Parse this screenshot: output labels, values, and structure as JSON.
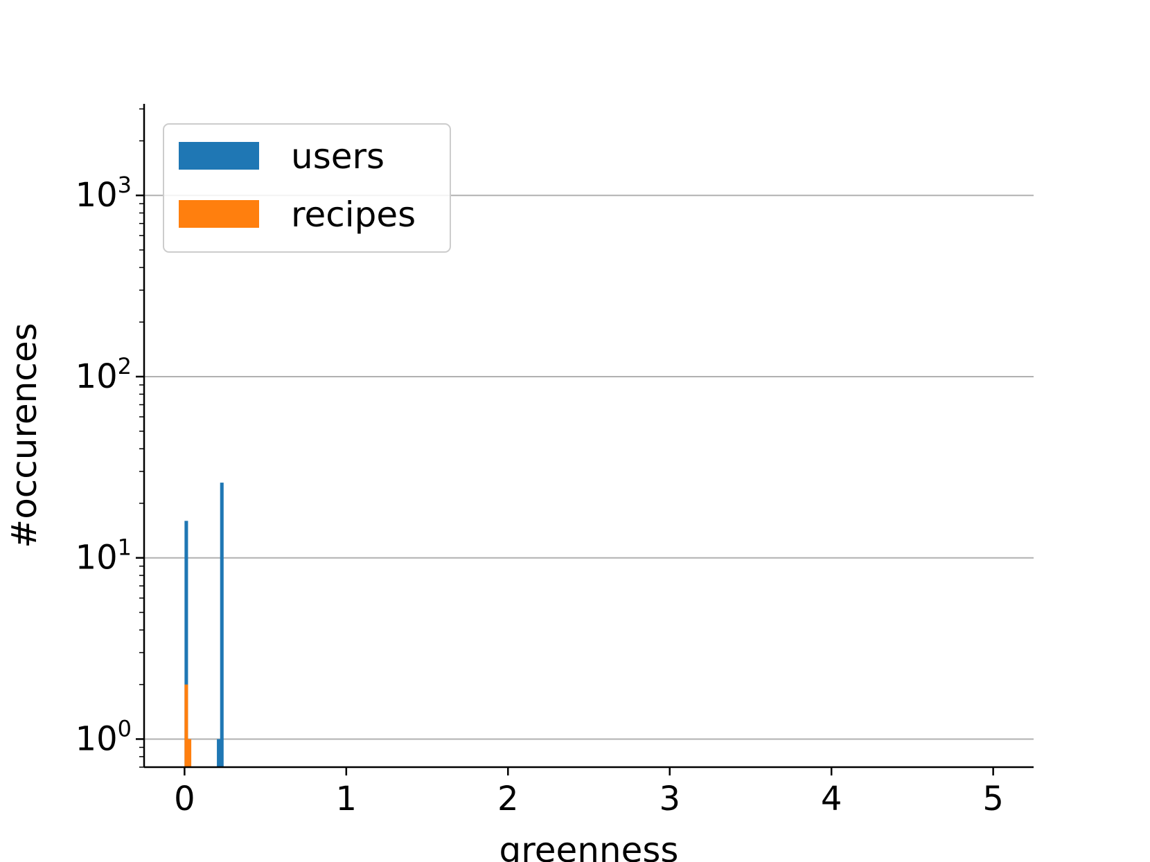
{
  "chart_data": {
    "type": "bar",
    "title": "",
    "xlabel": "greenness",
    "ylabel": "#occurences",
    "xlim": [
      -0.25,
      5.25
    ],
    "ylim": [
      0.7,
      3200
    ],
    "yscale": "log",
    "grid": "y-major",
    "legend_position": "top-left",
    "x_ticks": [
      "0",
      "1",
      "2",
      "3",
      "4",
      "5"
    ],
    "y_ticks": [
      {
        "base": "10",
        "exp": "0"
      },
      {
        "base": "10",
        "exp": "1"
      },
      {
        "base": "10",
        "exp": "2"
      },
      {
        "base": "10",
        "exp": "3"
      }
    ],
    "bin_width": 0.02,
    "bin_start": 0,
    "series": [
      {
        "name": "users",
        "color": "#1f77b4",
        "values": [
          16,
          0,
          0,
          0,
          0,
          0,
          0,
          0,
          0,
          0,
          1,
          26,
          0,
          0,
          0,
          0,
          0,
          0,
          0,
          0,
          0,
          0,
          0,
          0,
          0,
          0,
          0,
          0,
          0,
          0,
          0,
          0,
          0,
          0,
          0,
          0,
          0,
          0,
          0,
          0,
          0,
          0,
          0,
          0,
          0,
          0,
          0,
          0,
          0,
          0,
          0,
          0,
          0,
          0,
          0,
          0,
          0,
          0,
          0,
          0,
          0,
          0,
          0,
          0,
          0,
          0,
          0,
          0,
          0,
          0,
          0,
          0,
          0,
          0,
          0,
          0,
          0,
          0,
          0,
          0,
          0,
          0,
          0,
          0,
          0,
          0,
          0,
          0,
          0,
          0,
          0,
          0,
          0,
          0,
          0,
          0,
          0,
          0,
          0,
          0,
          0,
          0,
          0,
          0,
          0,
          0,
          0,
          0,
          0,
          0,
          0,
          0,
          0,
          0,
          0,
          0,
          0,
          0,
          0,
          0,
          0,
          0,
          0,
          0,
          0,
          0,
          0,
          0,
          0,
          0,
          0,
          0,
          0,
          0,
          0,
          0,
          0,
          0,
          0,
          0,
          0,
          0,
          0,
          0,
          0,
          0,
          0,
          0,
          0,
          0,
          0,
          0,
          0,
          0,
          0,
          0,
          0,
          0,
          0,
          0,
          0,
          0,
          0,
          0,
          0,
          0,
          0,
          0,
          0,
          0,
          0,
          0,
          0,
          0,
          0,
          0,
          0,
          0,
          0,
          0,
          0,
          0,
          0,
          0,
          0,
          0,
          0,
          0,
          0,
          0,
          0,
          0,
          0,
          0,
          0,
          0,
          0,
          0,
          0,
          0,
          0,
          0,
          0,
          0,
          0,
          0,
          0,
          0,
          0,
          0,
          0,
          0,
          0,
          0,
          0,
          0,
          0,
          0,
          0,
          0,
          0,
          0,
          0,
          0,
          0,
          0,
          0,
          0,
          0,
          0,
          0,
          0,
          0,
          0,
          0,
          0,
          0,
          0,
          0,
          0,
          0,
          0,
          0,
          0,
          0,
          0,
          0,
          0,
          0,
          0
        ]
      },
      {
        "name": "recipes",
        "color": "#ff7f0e",
        "values": [
          2,
          1,
          0,
          0,
          0,
          0,
          0,
          0,
          0,
          0,
          0,
          0,
          0,
          0,
          0,
          0,
          0,
          0,
          0,
          0,
          0,
          0,
          0,
          0,
          0,
          0,
          0,
          0,
          0,
          0,
          0,
          0,
          0,
          0,
          0,
          0,
          0,
          0,
          0,
          0,
          0,
          0,
          0,
          0,
          0,
          0,
          0,
          0,
          0,
          0,
          0,
          0,
          0,
          0,
          0,
          0,
          0,
          0,
          0,
          0,
          0,
          0,
          0,
          0,
          0,
          0,
          0,
          0,
          0,
          0,
          0,
          0,
          0,
          0,
          0,
          0,
          0,
          0,
          0,
          0,
          0,
          0,
          0,
          0,
          0,
          0,
          0,
          0,
          0,
          0,
          0,
          0,
          0,
          0,
          0,
          0,
          0,
          0,
          0,
          0,
          0,
          0,
          0,
          0,
          0,
          0,
          0,
          0,
          0,
          0,
          0,
          0,
          0,
          0,
          0,
          0,
          0,
          0,
          0,
          0,
          0,
          0,
          0,
          0,
          0,
          0,
          0,
          0,
          0,
          0,
          0,
          0,
          0,
          0,
          0,
          0,
          0,
          0,
          0,
          0,
          0,
          0,
          0,
          0,
          0,
          0,
          0,
          0,
          0,
          0,
          0,
          0,
          0,
          0,
          0,
          0,
          0,
          0,
          0,
          0,
          0,
          0,
          0,
          0,
          0,
          0,
          0,
          0,
          0,
          0,
          0,
          0,
          0,
          0,
          0,
          0,
          0,
          0,
          0,
          0,
          0,
          0,
          0,
          0,
          0,
          0,
          0,
          0,
          0,
          0,
          0,
          0,
          0,
          0,
          0,
          0,
          0,
          0,
          0,
          0,
          0,
          0,
          0,
          0,
          0,
          0,
          0,
          0,
          0,
          0,
          0,
          0,
          0,
          0,
          0,
          0,
          0,
          0,
          0,
          0,
          0,
          0,
          0,
          0,
          0,
          0,
          0,
          0,
          0,
          0,
          0,
          0,
          0,
          0,
          0,
          0,
          0,
          0,
          0,
          0,
          0,
          0,
          0,
          0,
          0,
          0,
          0,
          0,
          0,
          0
        ]
      }
    ]
  }
}
